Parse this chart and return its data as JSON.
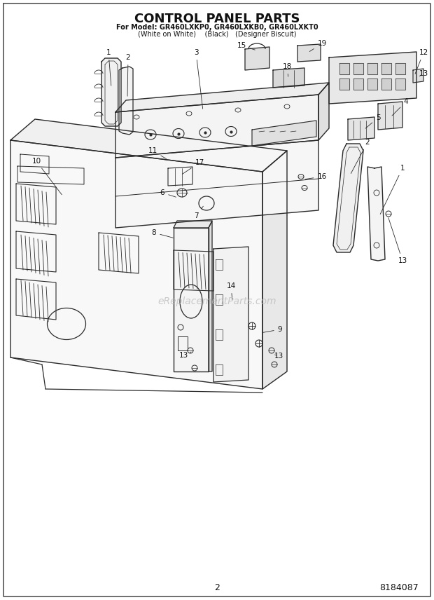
{
  "title": "CONTROL PANEL PARTS",
  "subtitle_line1": "For Model: GR460LXKP0, GR460LXKB0, GR460LXKT0",
  "subtitle_line2": "(White on White)    (Black)   (Designer Biscuit)",
  "page_number": "2",
  "part_number": "8184087",
  "bg": "#ffffff",
  "lc": "#2a2a2a",
  "tc": "#111111",
  "wm": "eReplacementParts.com",
  "wm_color": "#bbbbbb",
  "fig_w": 6.2,
  "fig_h": 8.56,
  "dpi": 100
}
